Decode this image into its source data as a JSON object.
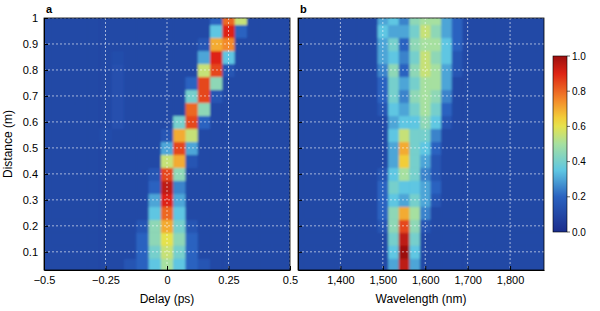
{
  "chart_data": [
    {
      "type": "heatmap",
      "title": "a",
      "x_label": "Delay (ps)",
      "y_label": "Distance (m)",
      "xlim": [
        -0.5,
        0.5
      ],
      "ylim": [
        0.03,
        1
      ],
      "xticks": [
        {
          "value": -0.5,
          "label": "−0.5"
        },
        {
          "value": -0.25,
          "label": "−0.25"
        },
        0,
        0.25,
        0.5
      ],
      "yticks": [
        0.1,
        0.2,
        0.3,
        0.4,
        0.5,
        0.6,
        0.7,
        0.8,
        0.9,
        1
      ],
      "grid": true,
      "x": [
        -0.5,
        -0.45,
        -0.4,
        -0.35,
        -0.3,
        -0.25,
        -0.2,
        -0.15,
        -0.1,
        -0.05,
        0,
        0.05,
        0.1,
        0.15,
        0.2,
        0.25,
        0.3,
        0.35,
        0.4,
        0.45,
        0.5
      ],
      "y": [
        0.05,
        0.1,
        0.15,
        0.2,
        0.25,
        0.3,
        0.35,
        0.4,
        0.45,
        0.5,
        0.55,
        0.6,
        0.65,
        0.7,
        0.75,
        0.8,
        0.85,
        0.9,
        0.95,
        1
      ],
      "z": [
        [
          0.1,
          0.1,
          0.1,
          0.1,
          0.1,
          0.1,
          0.1,
          0.15,
          0.2,
          0.35,
          0.5,
          0.35,
          0.2,
          0.15,
          0.1,
          0.1,
          0.1,
          0.1,
          0.1,
          0.1,
          0.1
        ],
        [
          0.1,
          0.1,
          0.1,
          0.1,
          0.1,
          0.1,
          0.1,
          0.1,
          0.2,
          0.4,
          0.55,
          0.4,
          0.2,
          0.1,
          0.1,
          0.1,
          0.1,
          0.1,
          0.1,
          0.1,
          0.1
        ],
        [
          0.1,
          0.1,
          0.1,
          0.1,
          0.1,
          0.1,
          0.1,
          0.1,
          0.2,
          0.45,
          0.6,
          0.45,
          0.2,
          0.1,
          0.1,
          0.1,
          0.1,
          0.1,
          0.1,
          0.1,
          0.1
        ],
        [
          0.1,
          0.1,
          0.1,
          0.1,
          0.1,
          0.1,
          0.1,
          0.1,
          0.15,
          0.45,
          0.7,
          0.4,
          0.15,
          0.1,
          0.1,
          0.1,
          0.1,
          0.1,
          0.1,
          0.1,
          0.1
        ],
        [
          0.1,
          0.1,
          0.1,
          0.1,
          0.1,
          0.1,
          0.1,
          0.1,
          0.1,
          0.35,
          0.8,
          0.35,
          0.1,
          0.1,
          0.1,
          0.1,
          0.1,
          0.1,
          0.1,
          0.1,
          0.1
        ],
        [
          0.1,
          0.1,
          0.1,
          0.1,
          0.1,
          0.1,
          0.1,
          0.1,
          0.1,
          0.3,
          0.9,
          0.3,
          0.1,
          0.1,
          0.1,
          0.1,
          0.1,
          0.1,
          0.1,
          0.1,
          0.1
        ],
        [
          0.1,
          0.1,
          0.1,
          0.1,
          0.1,
          0.1,
          0.1,
          0.1,
          0.1,
          0.2,
          0.95,
          0.25,
          0.1,
          0.1,
          0.1,
          0.1,
          0.1,
          0.1,
          0.1,
          0.1,
          0.1
        ],
        [
          0.1,
          0.1,
          0.1,
          0.1,
          0.1,
          0.1,
          0.1,
          0.1,
          0.1,
          0.15,
          0.85,
          0.45,
          0.1,
          0.1,
          0.1,
          0.1,
          0.1,
          0.1,
          0.1,
          0.1,
          0.1
        ],
        [
          0.1,
          0.1,
          0.1,
          0.1,
          0.1,
          0.1,
          0.1,
          0.1,
          0.1,
          0.1,
          0.55,
          0.7,
          0.15,
          0.1,
          0.1,
          0.1,
          0.1,
          0.1,
          0.1,
          0.1,
          0.1
        ],
        [
          0.1,
          0.1,
          0.1,
          0.1,
          0.1,
          0.1,
          0.1,
          0.1,
          0.1,
          0.1,
          0.3,
          0.85,
          0.3,
          0.1,
          0.1,
          0.1,
          0.1,
          0.1,
          0.1,
          0.1,
          0.1
        ],
        [
          0.1,
          0.1,
          0.1,
          0.1,
          0.1,
          0.12,
          0.1,
          0.1,
          0.1,
          0.1,
          0.15,
          0.7,
          0.55,
          0.1,
          0.1,
          0.1,
          0.1,
          0.1,
          0.1,
          0.1,
          0.1
        ],
        [
          0.1,
          0.1,
          0.1,
          0.1,
          0.1,
          0.1,
          0.13,
          0.1,
          0.1,
          0.1,
          0.1,
          0.4,
          0.85,
          0.2,
          0.1,
          0.1,
          0.1,
          0.1,
          0.1,
          0.1,
          0.1
        ],
        [
          0.1,
          0.1,
          0.1,
          0.1,
          0.1,
          0.1,
          0.13,
          0.1,
          0.1,
          0.1,
          0.1,
          0.1,
          0.8,
          0.45,
          0.1,
          0.1,
          0.1,
          0.1,
          0.1,
          0.1,
          0.1
        ],
        [
          0.1,
          0.1,
          0.1,
          0.1,
          0.1,
          0.1,
          0.13,
          0.1,
          0.1,
          0.1,
          0.1,
          0.1,
          0.4,
          0.85,
          0.15,
          0.1,
          0.1,
          0.1,
          0.1,
          0.1,
          0.1
        ],
        [
          0.1,
          0.1,
          0.1,
          0.1,
          0.1,
          0.1,
          0.13,
          0.1,
          0.1,
          0.1,
          0.1,
          0.1,
          0.2,
          0.85,
          0.45,
          0.1,
          0.1,
          0.1,
          0.1,
          0.1,
          0.1
        ],
        [
          0.1,
          0.1,
          0.1,
          0.1,
          0.1,
          0.1,
          0.13,
          0.1,
          0.1,
          0.1,
          0.1,
          0.1,
          0.1,
          0.55,
          0.85,
          0.15,
          0.1,
          0.1,
          0.1,
          0.1,
          0.1
        ],
        [
          0.1,
          0.1,
          0.1,
          0.1,
          0.1,
          0.1,
          0.12,
          0.1,
          0.1,
          0.1,
          0.1,
          0.1,
          0.1,
          0.3,
          0.9,
          0.35,
          0.1,
          0.1,
          0.1,
          0.1,
          0.1
        ],
        [
          0.1,
          0.1,
          0.1,
          0.1,
          0.1,
          0.1,
          0.1,
          0.1,
          0.1,
          0.1,
          0.1,
          0.1,
          0.1,
          0.15,
          0.7,
          0.75,
          0.1,
          0.1,
          0.1,
          0.1,
          0.1
        ],
        [
          0.1,
          0.1,
          0.1,
          0.1,
          0.1,
          0.1,
          0.1,
          0.1,
          0.1,
          0.1,
          0.1,
          0.1,
          0.1,
          0.1,
          0.35,
          0.9,
          0.2,
          0.1,
          0.1,
          0.1,
          0.1
        ],
        [
          0.1,
          0.1,
          0.1,
          0.1,
          0.1,
          0.1,
          0.1,
          0.1,
          0.1,
          0.1,
          0.1,
          0.1,
          0.1,
          0.1,
          0.2,
          0.8,
          0.55,
          0.1,
          0.1,
          0.1,
          0.1
        ]
      ]
    },
    {
      "type": "heatmap",
      "title": "b",
      "x_label": "Wavelength (nm)",
      "xlim": [
        1300,
        1880
      ],
      "ylim": [
        0.03,
        1
      ],
      "xticks": [
        {
          "value": 1400,
          "label": "1,400"
        },
        {
          "value": 1500,
          "label": "1,500"
        },
        {
          "value": 1600,
          "label": "1,600"
        },
        {
          "value": 1700,
          "label": "1,700"
        },
        {
          "value": 1800,
          "label": "1,800"
        }
      ],
      "yticks": [
        0.1,
        0.2,
        0.3,
        0.4,
        0.5,
        0.6,
        0.7,
        0.8,
        0.9,
        1
      ],
      "grid": true,
      "tick_labels": "x",
      "x": [
        1300,
        1325,
        1350,
        1375,
        1400,
        1425,
        1450,
        1475,
        1500,
        1525,
        1550,
        1575,
        1600,
        1625,
        1650,
        1675,
        1700,
        1725,
        1750,
        1775,
        1800,
        1825,
        1850,
        1875
      ],
      "y": [
        0.05,
        0.1,
        0.15,
        0.2,
        0.25,
        0.3,
        0.35,
        0.4,
        0.45,
        0.5,
        0.55,
        0.6,
        0.65,
        0.7,
        0.75,
        0.8,
        0.85,
        0.9,
        0.95,
        1
      ],
      "z": [
        [
          0.1,
          0.1,
          0.1,
          0.1,
          0.1,
          0.1,
          0.1,
          0.1,
          0.1,
          0.3,
          0.95,
          0.3,
          0.1,
          0.1,
          0.1,
          0.1,
          0.1,
          0.1,
          0.1,
          0.1,
          0.1,
          0.1,
          0.1,
          0.1
        ],
        [
          0.1,
          0.1,
          0.1,
          0.1,
          0.1,
          0.1,
          0.1,
          0.1,
          0.1,
          0.35,
          1,
          0.35,
          0.1,
          0.1,
          0.1,
          0.1,
          0.1,
          0.1,
          0.1,
          0.1,
          0.1,
          0.1,
          0.1,
          0.1
        ],
        [
          0.1,
          0.1,
          0.1,
          0.1,
          0.1,
          0.1,
          0.1,
          0.1,
          0.1,
          0.4,
          0.95,
          0.4,
          0.1,
          0.1,
          0.1,
          0.1,
          0.1,
          0.1,
          0.1,
          0.1,
          0.1,
          0.1,
          0.1,
          0.1
        ],
        [
          0.1,
          0.1,
          0.1,
          0.1,
          0.1,
          0.1,
          0.1,
          0.1,
          0.15,
          0.45,
          0.85,
          0.45,
          0.15,
          0.1,
          0.1,
          0.1,
          0.1,
          0.1,
          0.1,
          0.1,
          0.1,
          0.1,
          0.1,
          0.1
        ],
        [
          0.1,
          0.1,
          0.1,
          0.1,
          0.1,
          0.1,
          0.1,
          0.1,
          0.2,
          0.45,
          0.7,
          0.5,
          0.25,
          0.1,
          0.1,
          0.1,
          0.1,
          0.1,
          0.1,
          0.1,
          0.1,
          0.1,
          0.1,
          0.1
        ],
        [
          0.1,
          0.1,
          0.1,
          0.1,
          0.1,
          0.1,
          0.1,
          0.1,
          0.2,
          0.35,
          0.3,
          0.4,
          0.3,
          0.15,
          0.1,
          0.1,
          0.1,
          0.1,
          0.1,
          0.1,
          0.1,
          0.1,
          0.1,
          0.1
        ],
        [
          0.1,
          0.1,
          0.1,
          0.1,
          0.1,
          0.1,
          0.1,
          0.1,
          0.2,
          0.4,
          0.35,
          0.35,
          0.3,
          0.2,
          0.1,
          0.1,
          0.1,
          0.1,
          0.1,
          0.1,
          0.1,
          0.1,
          0.1,
          0.1
        ],
        [
          0.1,
          0.1,
          0.1,
          0.1,
          0.1,
          0.1,
          0.1,
          0.1,
          0.15,
          0.35,
          0.5,
          0.4,
          0.25,
          0.15,
          0.1,
          0.1,
          0.1,
          0.1,
          0.1,
          0.1,
          0.1,
          0.1,
          0.1,
          0.1
        ],
        [
          0.1,
          0.1,
          0.1,
          0.1,
          0.1,
          0.1,
          0.1,
          0.1,
          0.1,
          0.3,
          0.65,
          0.4,
          0.3,
          0.15,
          0.1,
          0.1,
          0.1,
          0.1,
          0.1,
          0.1,
          0.1,
          0.1,
          0.1,
          0.1
        ],
        [
          0.1,
          0.1,
          0.1,
          0.1,
          0.1,
          0.1,
          0.1,
          0.1,
          0.1,
          0.3,
          0.7,
          0.4,
          0.35,
          0.2,
          0.1,
          0.1,
          0.1,
          0.1,
          0.1,
          0.1,
          0.1,
          0.1,
          0.1,
          0.1
        ],
        [
          0.1,
          0.1,
          0.1,
          0.1,
          0.1,
          0.1,
          0.1,
          0.1,
          0.1,
          0.35,
          0.55,
          0.4,
          0.4,
          0.25,
          0.1,
          0.1,
          0.1,
          0.1,
          0.1,
          0.1,
          0.1,
          0.1,
          0.1,
          0.1
        ],
        [
          0.1,
          0.1,
          0.1,
          0.1,
          0.1,
          0.1,
          0.1,
          0.1,
          0.1,
          0.3,
          0.35,
          0.35,
          0.45,
          0.35,
          0.15,
          0.1,
          0.1,
          0.1,
          0.1,
          0.1,
          0.1,
          0.1,
          0.1,
          0.1
        ],
        [
          0.1,
          0.1,
          0.1,
          0.1,
          0.1,
          0.1,
          0.1,
          0.1,
          0.15,
          0.35,
          0.3,
          0.4,
          0.5,
          0.4,
          0.2,
          0.1,
          0.1,
          0.1,
          0.1,
          0.1,
          0.1,
          0.1,
          0.1,
          0.1
        ],
        [
          0.1,
          0.1,
          0.1,
          0.1,
          0.1,
          0.1,
          0.1,
          0.1,
          0.2,
          0.4,
          0.25,
          0.45,
          0.5,
          0.45,
          0.25,
          0.1,
          0.1,
          0.1,
          0.1,
          0.1,
          0.1,
          0.1,
          0.1,
          0.1
        ],
        [
          0.1,
          0.1,
          0.1,
          0.1,
          0.1,
          0.1,
          0.1,
          0.1,
          0.2,
          0.4,
          0.3,
          0.4,
          0.5,
          0.5,
          0.3,
          0.1,
          0.1,
          0.1,
          0.1,
          0.1,
          0.1,
          0.1,
          0.1,
          0.1
        ],
        [
          0.1,
          0.1,
          0.1,
          0.1,
          0.1,
          0.1,
          0.1,
          0.1,
          0.25,
          0.45,
          0.2,
          0.45,
          0.55,
          0.5,
          0.3,
          0.15,
          0.1,
          0.1,
          0.1,
          0.1,
          0.1,
          0.1,
          0.1,
          0.1
        ],
        [
          0.1,
          0.1,
          0.1,
          0.1,
          0.1,
          0.1,
          0.1,
          0.1,
          0.3,
          0.35,
          0.25,
          0.4,
          0.55,
          0.45,
          0.35,
          0.15,
          0.1,
          0.1,
          0.1,
          0.1,
          0.1,
          0.1,
          0.1,
          0.1
        ],
        [
          0.1,
          0.1,
          0.1,
          0.1,
          0.1,
          0.1,
          0.1,
          0.1,
          0.3,
          0.4,
          0.2,
          0.45,
          0.5,
          0.5,
          0.35,
          0.2,
          0.1,
          0.1,
          0.1,
          0.1,
          0.1,
          0.1,
          0.1,
          0.1
        ],
        [
          0.1,
          0.1,
          0.1,
          0.1,
          0.1,
          0.1,
          0.1,
          0.1,
          0.35,
          0.3,
          0.3,
          0.4,
          0.55,
          0.45,
          0.3,
          0.2,
          0.1,
          0.1,
          0.1,
          0.1,
          0.1,
          0.1,
          0.1,
          0.1
        ],
        [
          0.1,
          0.1,
          0.1,
          0.1,
          0.1,
          0.1,
          0.1,
          0.1,
          0.3,
          0.35,
          0.25,
          0.45,
          0.5,
          0.5,
          0.3,
          0.2,
          0.1,
          0.1,
          0.1,
          0.1,
          0.1,
          0.1,
          0.1,
          0.1
        ]
      ],
      "colorbar": {
        "range": [
          0,
          1
        ],
        "ticks": [
          {
            "value": 0,
            "label": "0.0"
          },
          0.2,
          0.4,
          0.6,
          0.8,
          {
            "value": 1,
            "label": "1.0"
          }
        ]
      }
    }
  ]
}
